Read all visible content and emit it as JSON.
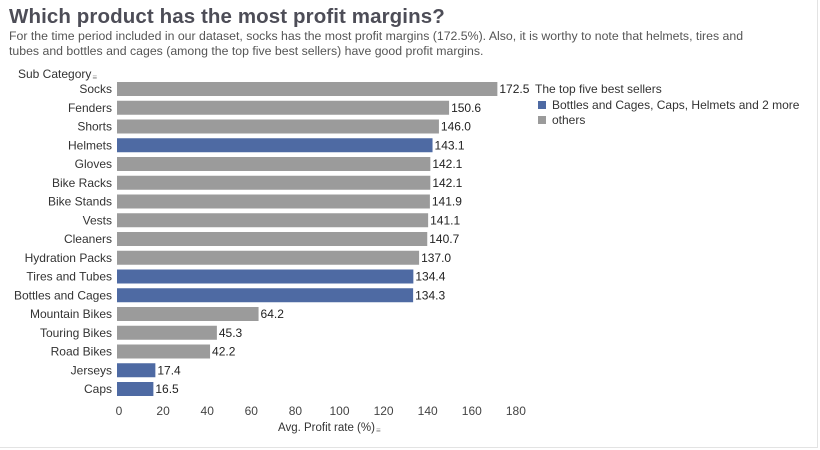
{
  "page": {
    "title": "Which product has the most profit margins?",
    "subtitle": "For the time period included in our dataset, socks has the most profit margins (172.5%). Also, it is worthy to note that helmets, tires and tubes and bottles and cages (among the top five best sellers) have good profit margins."
  },
  "colors": {
    "highlight": "#4e6aa3",
    "others": "#9b9b9b"
  },
  "chart_data": {
    "type": "bar",
    "orientation": "horizontal",
    "title": "Which product has the most profit margins?",
    "row_header": "Sub Category",
    "xlabel": "Avg. Profit rate (%)",
    "xlim": [
      0,
      180
    ],
    "ticks": [
      0,
      20,
      40,
      60,
      80,
      100,
      120,
      140,
      160,
      180
    ],
    "categories": [
      "Socks",
      "Fenders",
      "Shorts",
      "Helmets",
      "Gloves",
      "Bike Racks",
      "Bike Stands",
      "Vests",
      "Cleaners",
      "Hydration Packs",
      "Tires and Tubes",
      "Bottles and Cages",
      "Mountain Bikes",
      "Touring Bikes",
      "Road Bikes",
      "Jerseys",
      "Caps"
    ],
    "values": [
      172.5,
      150.6,
      146.0,
      143.1,
      142.1,
      142.1,
      141.9,
      141.1,
      140.7,
      137.0,
      134.4,
      134.3,
      64.2,
      45.3,
      42.2,
      17.4,
      16.5
    ],
    "value_labels": [
      "172.5",
      "150.6",
      "146.0",
      "143.1",
      "142.1",
      "142.1",
      "141.9",
      "141.1",
      "140.7",
      "137.0",
      "134.4",
      "134.3",
      "64.2",
      "45.3",
      "42.2",
      "17.4",
      "16.5"
    ],
    "groups": [
      "others",
      "others",
      "others",
      "highlight",
      "others",
      "others",
      "others",
      "others",
      "others",
      "others",
      "highlight",
      "highlight",
      "others",
      "others",
      "others",
      "highlight",
      "highlight"
    ],
    "legend": {
      "title": "The top five best sellers",
      "items": [
        {
          "key": "highlight",
          "label": "Bottles and Cages, Caps, Helmets and 2 more"
        },
        {
          "key": "others",
          "label": "others"
        }
      ]
    }
  }
}
